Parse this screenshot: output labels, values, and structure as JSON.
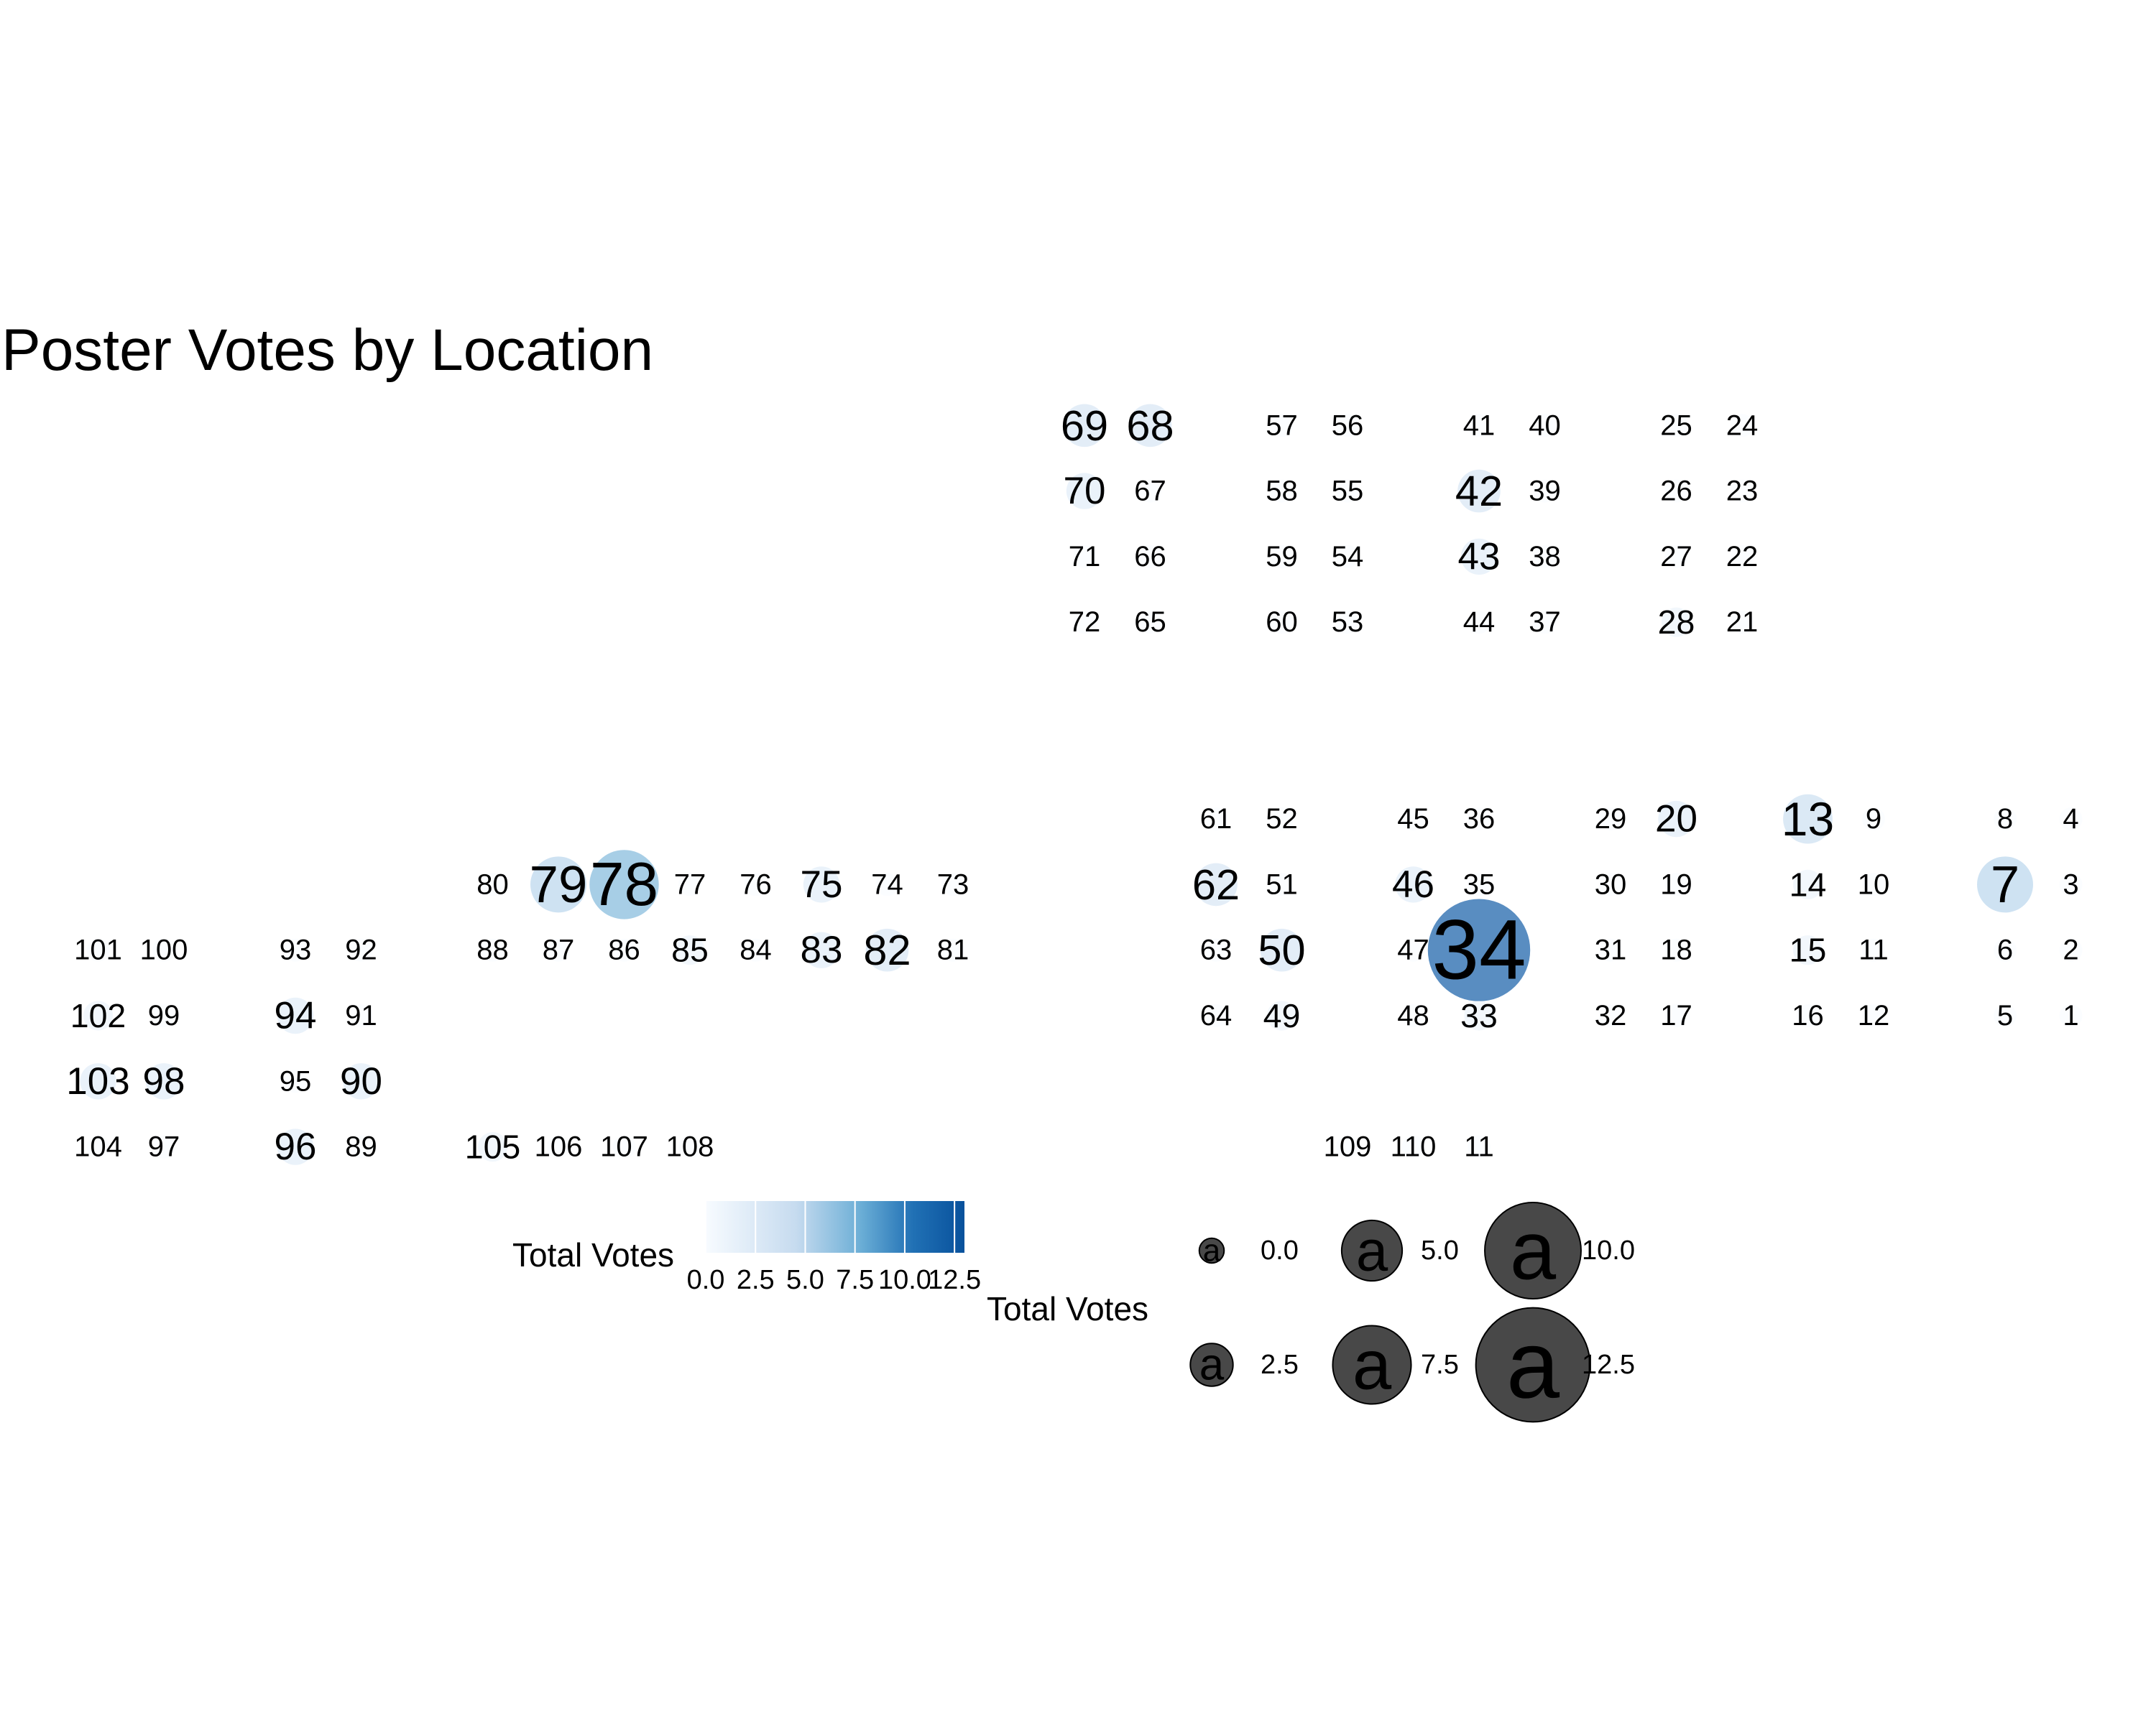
{
  "chart_data": {
    "type": "scatter",
    "title": "Poster Votes by Location",
    "color_scale": {
      "name": "Total Votes",
      "low": "#eef4fb",
      "high": "#08519c",
      "ticks": [
        "0.0",
        "2.5",
        "5.0",
        "7.5",
        "10.0",
        "12.5"
      ],
      "range": [
        0,
        13
      ]
    },
    "size_legend": {
      "name": "Total Votes",
      "glyph": "a",
      "levels": [
        {
          "value": 0.0,
          "label": "0.0"
        },
        {
          "value": 5.0,
          "label": "5.0"
        },
        {
          "value": 10.0,
          "label": "10.0"
        },
        {
          "value": 2.5,
          "label": "2.5"
        },
        {
          "value": 7.5,
          "label": "7.5"
        },
        {
          "value": 12.5,
          "label": "12.5"
        }
      ]
    },
    "points": [
      {
        "label": "69",
        "x": 16,
        "y": 1,
        "votes": 3
      },
      {
        "label": "68",
        "x": 17,
        "y": 1,
        "votes": 3
      },
      {
        "label": "57",
        "x": 19,
        "y": 1,
        "votes": 0
      },
      {
        "label": "56",
        "x": 20,
        "y": 1,
        "votes": 0
      },
      {
        "label": "41",
        "x": 22,
        "y": 1,
        "votes": 0
      },
      {
        "label": "40",
        "x": 23,
        "y": 1,
        "votes": 0
      },
      {
        "label": "25",
        "x": 25,
        "y": 1,
        "votes": 0
      },
      {
        "label": "24",
        "x": 26,
        "y": 1,
        "votes": 0
      },
      {
        "label": "70",
        "x": 16,
        "y": 2,
        "votes": 2
      },
      {
        "label": "67",
        "x": 17,
        "y": 2,
        "votes": 0
      },
      {
        "label": "58",
        "x": 19,
        "y": 2,
        "votes": 0
      },
      {
        "label": "55",
        "x": 20,
        "y": 2,
        "votes": 0
      },
      {
        "label": "42",
        "x": 22,
        "y": 2,
        "votes": 3
      },
      {
        "label": "39",
        "x": 23,
        "y": 2,
        "votes": 0
      },
      {
        "label": "26",
        "x": 25,
        "y": 2,
        "votes": 0
      },
      {
        "label": "23",
        "x": 26,
        "y": 2,
        "votes": 0
      },
      {
        "label": "71",
        "x": 16,
        "y": 3,
        "votes": 0
      },
      {
        "label": "66",
        "x": 17,
        "y": 3,
        "votes": 0
      },
      {
        "label": "59",
        "x": 19,
        "y": 3,
        "votes": 0
      },
      {
        "label": "54",
        "x": 20,
        "y": 3,
        "votes": 0
      },
      {
        "label": "43",
        "x": 22,
        "y": 3,
        "votes": 2
      },
      {
        "label": "38",
        "x": 23,
        "y": 3,
        "votes": 0
      },
      {
        "label": "27",
        "x": 25,
        "y": 3,
        "votes": 0
      },
      {
        "label": "22",
        "x": 26,
        "y": 3,
        "votes": 0
      },
      {
        "label": "72",
        "x": 16,
        "y": 4,
        "votes": 0
      },
      {
        "label": "65",
        "x": 17,
        "y": 4,
        "votes": 0
      },
      {
        "label": "60",
        "x": 19,
        "y": 4,
        "votes": 0
      },
      {
        "label": "53",
        "x": 20,
        "y": 4,
        "votes": 0
      },
      {
        "label": "44",
        "x": 22,
        "y": 4,
        "votes": 0
      },
      {
        "label": "37",
        "x": 23,
        "y": 4,
        "votes": 0
      },
      {
        "label": "28",
        "x": 25,
        "y": 4,
        "votes": 1
      },
      {
        "label": "21",
        "x": 26,
        "y": 4,
        "votes": 0
      },
      {
        "label": "61",
        "x": 18,
        "y": 7,
        "votes": 0
      },
      {
        "label": "52",
        "x": 19,
        "y": 7,
        "votes": 0
      },
      {
        "label": "45",
        "x": 21,
        "y": 7,
        "votes": 0
      },
      {
        "label": "36",
        "x": 22,
        "y": 7,
        "votes": 0
      },
      {
        "label": "29",
        "x": 24,
        "y": 7,
        "votes": 0
      },
      {
        "label": "20",
        "x": 25,
        "y": 7,
        "votes": 2
      },
      {
        "label": "13",
        "x": 27,
        "y": 7,
        "votes": 4
      },
      {
        "label": "9",
        "x": 28,
        "y": 7,
        "votes": 0
      },
      {
        "label": "8",
        "x": 30,
        "y": 7,
        "votes": 0
      },
      {
        "label": "4",
        "x": 31,
        "y": 7,
        "votes": 0
      },
      {
        "label": "80",
        "x": 7,
        "y": 8,
        "votes": 0
      },
      {
        "label": "79",
        "x": 8,
        "y": 8,
        "votes": 5
      },
      {
        "label": "78",
        "x": 9,
        "y": 8,
        "votes": 7
      },
      {
        "label": "77",
        "x": 10,
        "y": 8,
        "votes": 0
      },
      {
        "label": "76",
        "x": 11,
        "y": 8,
        "votes": 0
      },
      {
        "label": "75",
        "x": 12,
        "y": 8,
        "votes": 2
      },
      {
        "label": "74",
        "x": 13,
        "y": 8,
        "votes": 0
      },
      {
        "label": "73",
        "x": 14,
        "y": 8,
        "votes": 0
      },
      {
        "label": "62",
        "x": 18,
        "y": 8,
        "votes": 3
      },
      {
        "label": "51",
        "x": 19,
        "y": 8,
        "votes": 0
      },
      {
        "label": "46",
        "x": 21,
        "y": 8,
        "votes": 2
      },
      {
        "label": "35",
        "x": 22,
        "y": 8,
        "votes": 0
      },
      {
        "label": "30",
        "x": 24,
        "y": 8,
        "votes": 0
      },
      {
        "label": "19",
        "x": 25,
        "y": 8,
        "votes": 0
      },
      {
        "label": "14",
        "x": 27,
        "y": 8,
        "votes": 1
      },
      {
        "label": "10",
        "x": 28,
        "y": 8,
        "votes": 0
      },
      {
        "label": "7",
        "x": 30,
        "y": 8,
        "votes": 5
      },
      {
        "label": "3",
        "x": 31,
        "y": 8,
        "votes": 0
      },
      {
        "label": "101",
        "x": 1,
        "y": 9,
        "votes": 0
      },
      {
        "label": "100",
        "x": 2,
        "y": 9,
        "votes": 0
      },
      {
        "label": "93",
        "x": 4,
        "y": 9,
        "votes": 0
      },
      {
        "label": "92",
        "x": 5,
        "y": 9,
        "votes": 0
      },
      {
        "label": "88",
        "x": 7,
        "y": 9,
        "votes": 0
      },
      {
        "label": "87",
        "x": 8,
        "y": 9,
        "votes": 0
      },
      {
        "label": "86",
        "x": 9,
        "y": 9,
        "votes": 0
      },
      {
        "label": "85",
        "x": 10,
        "y": 9,
        "votes": 1
      },
      {
        "label": "84",
        "x": 11,
        "y": 9,
        "votes": 0
      },
      {
        "label": "83",
        "x": 12,
        "y": 9,
        "votes": 2
      },
      {
        "label": "82",
        "x": 13,
        "y": 9,
        "votes": 3
      },
      {
        "label": "81",
        "x": 14,
        "y": 9,
        "votes": 0
      },
      {
        "label": "63",
        "x": 18,
        "y": 9,
        "votes": 0
      },
      {
        "label": "50",
        "x": 19,
        "y": 9,
        "votes": 3
      },
      {
        "label": "47",
        "x": 21,
        "y": 9,
        "votes": 0
      },
      {
        "label": "34",
        "x": 22,
        "y": 9,
        "votes": 12
      },
      {
        "label": "31",
        "x": 24,
        "y": 9,
        "votes": 0
      },
      {
        "label": "18",
        "x": 25,
        "y": 9,
        "votes": 0
      },
      {
        "label": "15",
        "x": 27,
        "y": 9,
        "votes": 1
      },
      {
        "label": "11",
        "x": 28,
        "y": 9,
        "votes": 0
      },
      {
        "label": "6",
        "x": 30,
        "y": 9,
        "votes": 0
      },
      {
        "label": "2",
        "x": 31,
        "y": 9,
        "votes": 0
      },
      {
        "label": "102",
        "x": 1,
        "y": 10,
        "votes": 1
      },
      {
        "label": "99",
        "x": 2,
        "y": 10,
        "votes": 0
      },
      {
        "label": "94",
        "x": 4,
        "y": 10,
        "votes": 2
      },
      {
        "label": "91",
        "x": 5,
        "y": 10,
        "votes": 0
      },
      {
        "label": "64",
        "x": 18,
        "y": 10,
        "votes": 0
      },
      {
        "label": "49",
        "x": 19,
        "y": 10,
        "votes": 1
      },
      {
        "label": "48",
        "x": 21,
        "y": 10,
        "votes": 0
      },
      {
        "label": "33",
        "x": 22,
        "y": 10,
        "votes": 1
      },
      {
        "label": "32",
        "x": 24,
        "y": 10,
        "votes": 0
      },
      {
        "label": "17",
        "x": 25,
        "y": 10,
        "votes": 0
      },
      {
        "label": "16",
        "x": 27,
        "y": 10,
        "votes": 0
      },
      {
        "label": "12",
        "x": 28,
        "y": 10,
        "votes": 0
      },
      {
        "label": "5",
        "x": 30,
        "y": 10,
        "votes": 0
      },
      {
        "label": "1",
        "x": 31,
        "y": 10,
        "votes": 0
      },
      {
        "label": "103",
        "x": 1,
        "y": 11,
        "votes": 2
      },
      {
        "label": "98",
        "x": 2,
        "y": 11,
        "votes": 2
      },
      {
        "label": "95",
        "x": 4,
        "y": 11,
        "votes": 0
      },
      {
        "label": "90",
        "x": 5,
        "y": 11,
        "votes": 2
      },
      {
        "label": "104",
        "x": 1,
        "y": 12,
        "votes": 0
      },
      {
        "label": "97",
        "x": 2,
        "y": 12,
        "votes": 0
      },
      {
        "label": "96",
        "x": 4,
        "y": 12,
        "votes": 2
      },
      {
        "label": "89",
        "x": 5,
        "y": 12,
        "votes": 0
      },
      {
        "label": "105",
        "x": 7,
        "y": 12,
        "votes": 1
      },
      {
        "label": "106",
        "x": 8,
        "y": 12,
        "votes": 0
      },
      {
        "label": "107",
        "x": 9,
        "y": 12,
        "votes": 0
      },
      {
        "label": "108",
        "x": 10,
        "y": 12,
        "votes": 0
      },
      {
        "label": "109",
        "x": 20,
        "y": 12,
        "votes": 0
      },
      {
        "label": "110",
        "x": 21,
        "y": 12,
        "votes": 0
      },
      {
        "label": "11",
        "x": 22,
        "y": 12,
        "votes": 0
      }
    ]
  }
}
